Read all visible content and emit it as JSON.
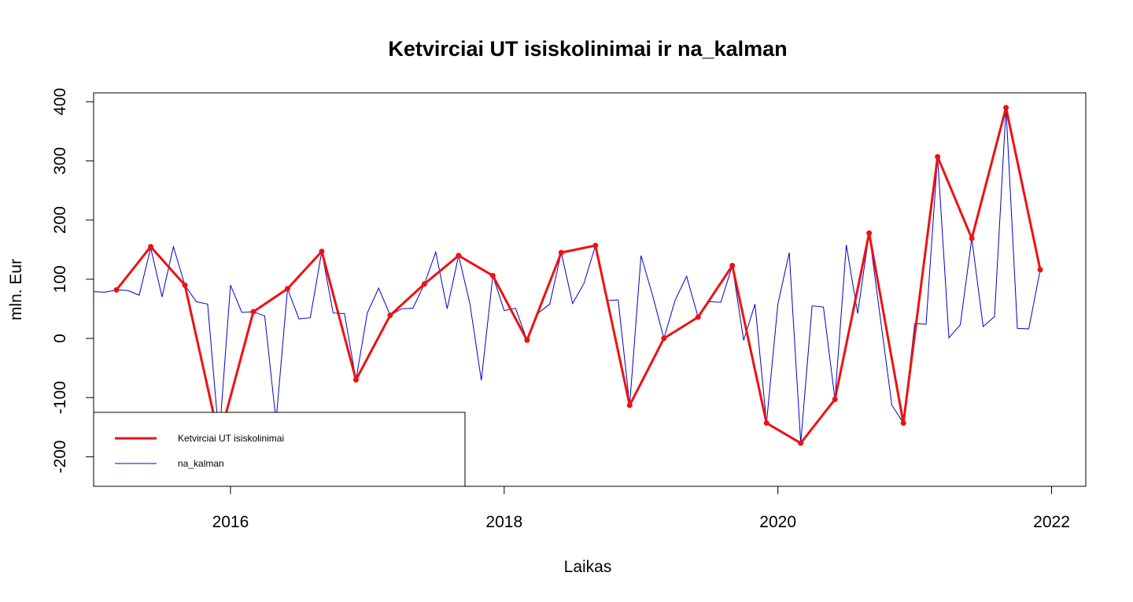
{
  "chart_data": {
    "type": "line",
    "title": "Ketvirciai UT isiskolinimai ir na_kalman",
    "xlabel": "Laikas",
    "ylabel": "mln. Eur",
    "xlim": [
      2015.0,
      2022.25
    ],
    "ylim": [
      -250,
      415
    ],
    "x_ticks": [
      2016,
      2018,
      2020,
      2022
    ],
    "y_ticks": [
      -200,
      -100,
      0,
      100,
      200,
      300,
      400
    ],
    "grid": false,
    "legend_position": "bottom-left",
    "colors": {
      "quarterly": "#ee1111",
      "kalman": "#0000cc"
    },
    "series": [
      {
        "name": "Ketvirciai UT isiskolinimai",
        "style": "line-points",
        "x": [
          2015.167,
          2015.417,
          2015.667,
          2015.917,
          2016.167,
          2016.417,
          2016.667,
          2016.917,
          2017.167,
          2017.417,
          2017.667,
          2017.917,
          2018.167,
          2018.417,
          2018.667,
          2018.917,
          2019.167,
          2019.417,
          2019.667,
          2019.917,
          2020.167,
          2020.417,
          2020.667,
          2020.917,
          2021.167,
          2021.417,
          2021.667,
          2021.917
        ],
        "values": [
          82,
          155,
          90,
          -170,
          45,
          84,
          147,
          -70,
          39,
          92,
          140,
          106,
          -3,
          145,
          157,
          -113,
          0,
          36,
          123,
          -143,
          -177,
          -103,
          178,
          -143,
          307,
          169,
          390,
          116
        ]
      },
      {
        "name": "na_kalman",
        "style": "line",
        "x": [
          2015.0,
          2015.083,
          2015.167,
          2015.25,
          2015.333,
          2015.417,
          2015.5,
          2015.583,
          2015.667,
          2015.75,
          2015.833,
          2015.917,
          2016.0,
          2016.083,
          2016.167,
          2016.25,
          2016.333,
          2016.417,
          2016.5,
          2016.583,
          2016.667,
          2016.75,
          2016.833,
          2016.917,
          2017.0,
          2017.083,
          2017.167,
          2017.25,
          2017.333,
          2017.417,
          2017.5,
          2017.583,
          2017.667,
          2017.75,
          2017.833,
          2017.917,
          2018.0,
          2018.083,
          2018.167,
          2018.25,
          2018.333,
          2018.417,
          2018.5,
          2018.583,
          2018.667,
          2018.75,
          2018.833,
          2018.917,
          2019.0,
          2019.083,
          2019.167,
          2019.25,
          2019.333,
          2019.417,
          2019.5,
          2019.583,
          2019.667,
          2019.75,
          2019.833,
          2019.917,
          2020.0,
          2020.083,
          2020.167,
          2020.25,
          2020.333,
          2020.417,
          2020.5,
          2020.583,
          2020.667,
          2020.75,
          2020.833,
          2020.917,
          2021.0,
          2021.083,
          2021.167,
          2021.25,
          2021.333,
          2021.417,
          2021.5,
          2021.583,
          2021.667,
          2021.75,
          2021.833,
          2021.917
        ],
        "values": [
          79,
          78,
          82,
          81,
          73,
          153,
          70,
          155,
          90,
          62,
          58,
          -170,
          90,
          44,
          45,
          38,
          -140,
          84,
          33,
          35,
          147,
          43,
          42,
          -70,
          43,
          85,
          39,
          50,
          51,
          92,
          146,
          50,
          140,
          58,
          -71,
          106,
          47,
          51,
          -3,
          43,
          58,
          145,
          59,
          93,
          157,
          64,
          65,
          -113,
          140,
          74,
          0,
          65,
          105,
          36,
          62,
          61,
          123,
          -3,
          58,
          -143,
          58,
          145,
          -177,
          55,
          53,
          -103,
          158,
          42,
          178,
          32,
          -113,
          -143,
          25,
          24,
          307,
          1,
          23,
          169,
          20,
          37,
          390,
          17,
          16,
          116
        ]
      }
    ]
  }
}
